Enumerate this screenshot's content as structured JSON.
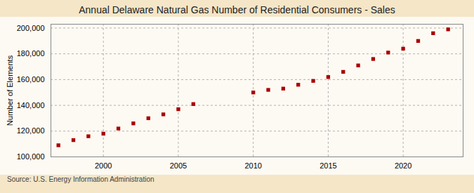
{
  "chart_data": {
    "type": "scatter",
    "title": "Annual Delaware Natural Gas Number of Residential Consumers - Sales",
    "ylabel": "Number of Elements",
    "source": "Source: U.S. Energy Information Administration",
    "x": [
      1997,
      1998,
      1999,
      2000,
      2001,
      2002,
      2003,
      2004,
      2005,
      2006,
      2010,
      2011,
      2012,
      2013,
      2014,
      2015,
      2016,
      2017,
      2018,
      2019,
      2020,
      2021,
      2022,
      2023
    ],
    "values": [
      109000,
      113000,
      116000,
      118000,
      122000,
      126000,
      130000,
      133000,
      137000,
      141000,
      150000,
      152000,
      153000,
      156000,
      159000,
      162000,
      166000,
      171000,
      176000,
      181000,
      184000,
      190000,
      196000,
      199000
    ],
    "color": "#aa0000",
    "marker": "square",
    "xlim": [
      1996.5,
      2024
    ],
    "xticks": [
      2000,
      2005,
      2010,
      2015,
      2020
    ],
    "ylim": [
      100000,
      203000
    ],
    "yticks": [
      {
        "value": 100000,
        "label": "100,000"
      },
      {
        "value": 120000,
        "label": "120,000"
      },
      {
        "value": 140000,
        "label": "140,000"
      },
      {
        "value": 160000,
        "label": "160,000"
      },
      {
        "value": 180000,
        "label": "180,000"
      },
      {
        "value": 200000,
        "label": "200,000"
      }
    ],
    "grid": true
  }
}
